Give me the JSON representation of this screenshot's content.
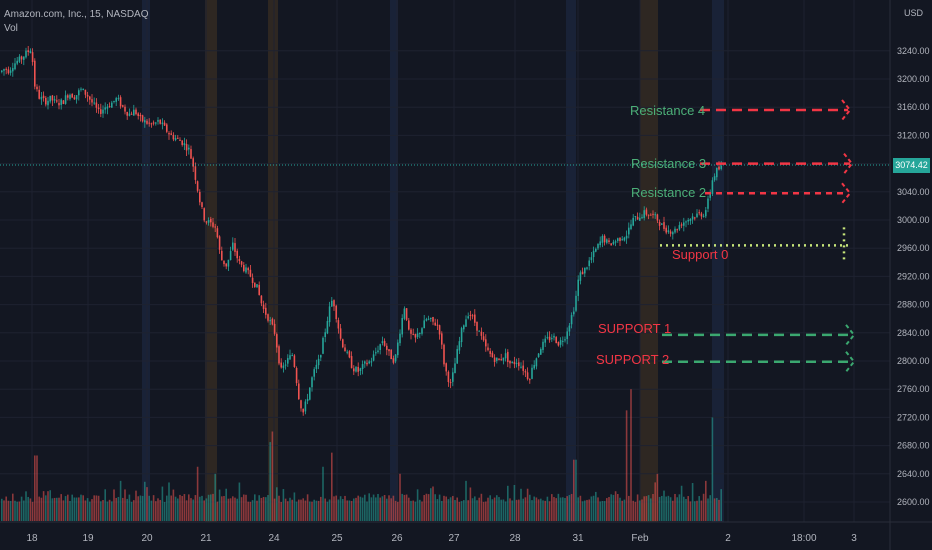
{
  "header": {
    "symbol": "Amazon.com, Inc., 15, NASDAQ",
    "volume_label": "Vol"
  },
  "price_axis": {
    "unit": "USD",
    "last_price": "3074.42"
  },
  "colors": {
    "background": "#131722",
    "up": "#26a69a",
    "down": "#ef5350",
    "resistance": "#f23645",
    "support": "#3ba870",
    "support0": "#c6e57a",
    "label_green": "#4caf78",
    "label_red": "#f23645",
    "session_orange": "#3a2f22",
    "session_blue": "#1c2840"
  },
  "chart_data": {
    "type": "candlestick",
    "ylim": [
      2570,
      3270
    ],
    "yticks": [
      2600,
      2640,
      2680,
      2720,
      2760,
      2800,
      2840,
      2880,
      2920,
      2960,
      3000,
      3040,
      3080,
      3120,
      3160,
      3200,
      3240
    ],
    "ytick_labels": [
      "2600.00",
      "2640.00",
      "2680.00",
      "2720.00",
      "2760.00",
      "2800.00",
      "2840.00",
      "2880.00",
      "2920.00",
      "2960.00",
      "3000.00",
      "3040.00",
      "3080.00",
      "3120.00",
      "3160.00",
      "3200.00",
      "3240.00"
    ],
    "xticks": [
      "18",
      "19",
      "20",
      "21",
      "24",
      "25",
      "26",
      "27",
      "28",
      "31",
      "Feb",
      "2",
      "18:00",
      "3"
    ],
    "price_path": [
      [
        0,
        3210
      ],
      [
        4,
        3215
      ],
      [
        8,
        3212
      ],
      [
        12,
        3220
      ],
      [
        16,
        3225
      ],
      [
        20,
        3228
      ],
      [
        24,
        3235
      ],
      [
        28,
        3240
      ],
      [
        31,
        3245
      ],
      [
        33,
        3195
      ],
      [
        38,
        3175
      ],
      [
        44,
        3168
      ],
      [
        50,
        3172
      ],
      [
        56,
        3165
      ],
      [
        62,
        3168
      ],
      [
        68,
        3180
      ],
      [
        74,
        3175
      ],
      [
        80,
        3185
      ],
      [
        86,
        3178
      ],
      [
        92,
        3165
      ],
      [
        98,
        3152
      ],
      [
        104,
        3160
      ],
      [
        110,
        3165
      ],
      [
        116,
        3172
      ],
      [
        122,
        3160
      ],
      [
        128,
        3150
      ],
      [
        134,
        3155
      ],
      [
        140,
        3142
      ],
      [
        146,
        3138
      ],
      [
        152,
        3135
      ],
      [
        158,
        3140
      ],
      [
        164,
        3130
      ],
      [
        170,
        3120
      ],
      [
        176,
        3115
      ],
      [
        182,
        3110
      ],
      [
        188,
        3100
      ],
      [
        192,
        3080
      ],
      [
        196,
        3050
      ],
      [
        200,
        3020
      ],
      [
        204,
        3000
      ],
      [
        210,
        2995
      ],
      [
        215,
        2990
      ],
      [
        220,
        2945
      ],
      [
        226,
        2935
      ],
      [
        232,
        2965
      ],
      [
        238,
        2940
      ],
      [
        244,
        2930
      ],
      [
        250,
        2920
      ],
      [
        256,
        2905
      ],
      [
        262,
        2875
      ],
      [
        268,
        2860
      ],
      [
        274,
        2840
      ],
      [
        280,
        2785
      ],
      [
        286,
        2800
      ],
      [
        292,
        2810
      ],
      [
        298,
        2750
      ],
      [
        302,
        2725
      ],
      [
        306,
        2745
      ],
      [
        312,
        2780
      ],
      [
        318,
        2800
      ],
      [
        324,
        2840
      ],
      [
        328,
        2870
      ],
      [
        332,
        2890
      ],
      [
        336,
        2860
      ],
      [
        340,
        2830
      ],
      [
        346,
        2810
      ],
      [
        352,
        2790
      ],
      [
        358,
        2785
      ],
      [
        364,
        2795
      ],
      [
        370,
        2800
      ],
      [
        376,
        2815
      ],
      [
        382,
        2830
      ],
      [
        388,
        2810
      ],
      [
        394,
        2800
      ],
      [
        400,
        2850
      ],
      [
        404,
        2880
      ],
      [
        408,
        2840
      ],
      [
        414,
        2830
      ],
      [
        420,
        2845
      ],
      [
        426,
        2860
      ],
      [
        432,
        2855
      ],
      [
        438,
        2850
      ],
      [
        444,
        2790
      ],
      [
        450,
        2765
      ],
      [
        456,
        2810
      ],
      [
        462,
        2850
      ],
      [
        468,
        2870
      ],
      [
        474,
        2855
      ],
      [
        480,
        2835
      ],
      [
        486,
        2815
      ],
      [
        492,
        2805
      ],
      [
        498,
        2800
      ],
      [
        504,
        2810
      ],
      [
        510,
        2795
      ],
      [
        516,
        2800
      ],
      [
        522,
        2790
      ],
      [
        528,
        2775
      ],
      [
        534,
        2800
      ],
      [
        540,
        2820
      ],
      [
        546,
        2830
      ],
      [
        552,
        2835
      ],
      [
        558,
        2825
      ],
      [
        564,
        2835
      ],
      [
        570,
        2860
      ],
      [
        574,
        2880
      ],
      [
        578,
        2920
      ],
      [
        584,
        2930
      ],
      [
        590,
        2945
      ],
      [
        596,
        2960
      ],
      [
        602,
        2975
      ],
      [
        608,
        2965
      ],
      [
        614,
        2970
      ],
      [
        620,
        2975
      ],
      [
        626,
        2980
      ],
      [
        632,
        3000
      ],
      [
        638,
        3005
      ],
      [
        644,
        3010
      ],
      [
        650,
        3008
      ],
      [
        656,
        3002
      ],
      [
        662,
        2990
      ],
      [
        668,
        2985
      ],
      [
        674,
        2985
      ],
      [
        680,
        2995
      ],
      [
        686,
        3000
      ],
      [
        692,
        3005
      ],
      [
        698,
        3008
      ],
      [
        704,
        3010
      ],
      [
        708,
        3030
      ],
      [
        712,
        3060
      ],
      [
        716,
        3070
      ],
      [
        720,
        3074
      ]
    ],
    "volume_spikes": [
      [
        35,
        2666
      ],
      [
        120,
        2630
      ],
      [
        196,
        2650
      ],
      [
        214,
        2640
      ],
      [
        270,
        2685
      ],
      [
        272,
        2700
      ],
      [
        322,
        2650
      ],
      [
        330,
        2670
      ],
      [
        400,
        2640
      ],
      [
        466,
        2630
      ],
      [
        574,
        2660
      ],
      [
        626,
        2730
      ],
      [
        630,
        2760
      ],
      [
        656,
        2640
      ],
      [
        706,
        2630
      ],
      [
        712,
        2720
      ]
    ],
    "levels": [
      {
        "label": "Resistance 4",
        "price": 3156,
        "style": "resistance"
      },
      {
        "label": "Resistance 3",
        "price": 3080,
        "style": "resistance"
      },
      {
        "label": "Resistance 2",
        "price": 3038,
        "style": "resistance"
      },
      {
        "label": "Support 0",
        "price": 2964,
        "style": "support0"
      },
      {
        "label": "SUPPORT 1",
        "price": 2837,
        "style": "support"
      },
      {
        "label": "SUPPORT 2",
        "price": 2799,
        "style": "support"
      }
    ]
  }
}
